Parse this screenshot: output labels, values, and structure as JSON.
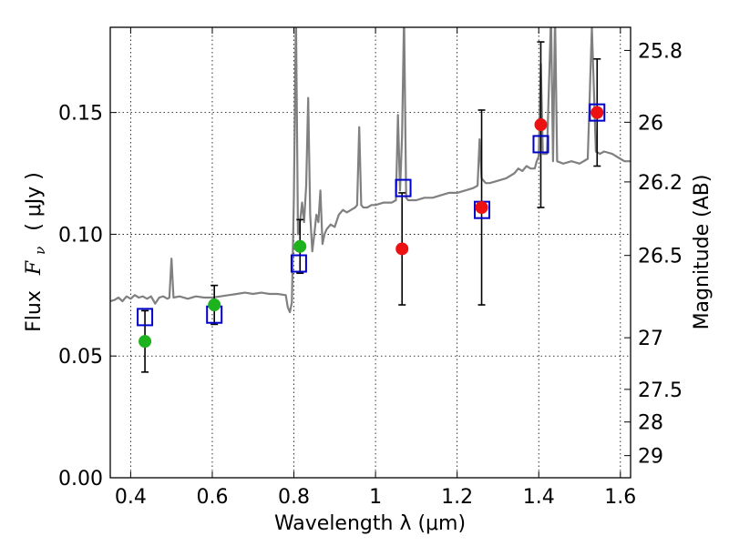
{
  "chart_data": {
    "type": "scatter",
    "title": "",
    "xlabel": "Wavelength  λ (μm)",
    "ylabel_prefix": "Flux",
    "ylabel_symbol": "F",
    "ylabel_subscript": "ν",
    "ylabel_units": "( μJy )",
    "y2label": "Magnitude (AB)",
    "xlim": [
      0.35,
      1.625
    ],
    "ylim": [
      0.0,
      0.185
    ],
    "grid": true,
    "xticks": [
      0.4,
      0.6,
      0.8,
      1.0,
      1.2,
      1.4,
      1.6
    ],
    "xtick_labels": [
      "0.4",
      "0.6",
      "0.8",
      "1",
      "1.2",
      "1.4",
      "1.6"
    ],
    "yticks": [
      0.0,
      0.05,
      0.1,
      0.15
    ],
    "ytick_labels": [
      "0.00",
      "0.05",
      "0.10",
      "0.15"
    ],
    "y2ticks": [
      {
        "label": "25.8",
        "flux": 0.1755
      },
      {
        "label": "26",
        "flux": 0.146
      },
      {
        "label": "26.2",
        "flux": 0.1215
      },
      {
        "label": "26.5",
        "flux": 0.0913
      },
      {
        "label": "27",
        "flux": 0.0575
      },
      {
        "label": "27.5",
        "flux": 0.0363
      },
      {
        "label": "28",
        "flux": 0.0229
      },
      {
        "label": "29",
        "flux": 0.0091
      }
    ],
    "colors": {
      "spectrum": "#808080",
      "model_box": "#0000cc",
      "green": "#1db31d",
      "red": "#ee1111",
      "errorbar": "#000000"
    },
    "spectrum": [
      [
        0.35,
        0.0725
      ],
      [
        0.36,
        0.073
      ],
      [
        0.37,
        0.074
      ],
      [
        0.38,
        0.0725
      ],
      [
        0.39,
        0.0745
      ],
      [
        0.4,
        0.0735
      ],
      [
        0.41,
        0.075
      ],
      [
        0.42,
        0.074
      ],
      [
        0.43,
        0.0745
      ],
      [
        0.44,
        0.0735
      ],
      [
        0.45,
        0.0745
      ],
      [
        0.46,
        0.0715
      ],
      [
        0.47,
        0.074
      ],
      [
        0.48,
        0.0745
      ],
      [
        0.49,
        0.0735
      ],
      [
        0.495,
        0.074
      ],
      [
        0.5,
        0.09
      ],
      [
        0.505,
        0.074
      ],
      [
        0.52,
        0.0745
      ],
      [
        0.54,
        0.0735
      ],
      [
        0.56,
        0.0745
      ],
      [
        0.58,
        0.074
      ],
      [
        0.6,
        0.074
      ],
      [
        0.62,
        0.0745
      ],
      [
        0.64,
        0.075
      ],
      [
        0.66,
        0.0755
      ],
      [
        0.68,
        0.076
      ],
      [
        0.7,
        0.0755
      ],
      [
        0.72,
        0.076
      ],
      [
        0.74,
        0.0755
      ],
      [
        0.76,
        0.0755
      ],
      [
        0.78,
        0.075
      ],
      [
        0.785,
        0.07
      ],
      [
        0.79,
        0.068
      ],
      [
        0.795,
        0.072
      ],
      [
        0.8,
        0.115
      ],
      [
        0.805,
        0.19
      ],
      [
        0.81,
        0.1
      ],
      [
        0.815,
        0.105
      ],
      [
        0.82,
        0.113
      ],
      [
        0.825,
        0.105
      ],
      [
        0.83,
        0.12
      ],
      [
        0.835,
        0.156
      ],
      [
        0.84,
        0.108
      ],
      [
        0.845,
        0.093
      ],
      [
        0.85,
        0.1
      ],
      [
        0.855,
        0.108
      ],
      [
        0.86,
        0.105
      ],
      [
        0.865,
        0.118
      ],
      [
        0.87,
        0.096
      ],
      [
        0.875,
        0.1
      ],
      [
        0.88,
        0.102
      ],
      [
        0.89,
        0.104
      ],
      [
        0.9,
        0.103
      ],
      [
        0.91,
        0.108
      ],
      [
        0.92,
        0.11
      ],
      [
        0.93,
        0.109
      ],
      [
        0.94,
        0.11
      ],
      [
        0.95,
        0.111
      ],
      [
        0.955,
        0.112
      ],
      [
        0.96,
        0.144
      ],
      [
        0.965,
        0.112
      ],
      [
        0.97,
        0.111
      ],
      [
        0.98,
        0.111
      ],
      [
        0.99,
        0.112
      ],
      [
        1.0,
        0.112
      ],
      [
        1.02,
        0.113
      ],
      [
        1.04,
        0.113
      ],
      [
        1.05,
        0.114
      ],
      [
        1.055,
        0.149
      ],
      [
        1.06,
        0.118
      ],
      [
        1.065,
        0.14
      ],
      [
        1.07,
        0.19
      ],
      [
        1.075,
        0.115
      ],
      [
        1.08,
        0.114
      ],
      [
        1.1,
        0.114
      ],
      [
        1.12,
        0.115
      ],
      [
        1.14,
        0.115
      ],
      [
        1.16,
        0.116
      ],
      [
        1.18,
        0.117
      ],
      [
        1.2,
        0.117
      ],
      [
        1.22,
        0.118
      ],
      [
        1.24,
        0.119
      ],
      [
        1.25,
        0.12
      ],
      [
        1.255,
        0.139
      ],
      [
        1.26,
        0.123
      ],
      [
        1.27,
        0.121
      ],
      [
        1.28,
        0.121
      ],
      [
        1.3,
        0.122
      ],
      [
        1.32,
        0.123
      ],
      [
        1.34,
        0.125
      ],
      [
        1.35,
        0.127
      ],
      [
        1.36,
        0.126
      ],
      [
        1.37,
        0.128
      ],
      [
        1.38,
        0.127
      ],
      [
        1.39,
        0.127
      ],
      [
        1.395,
        0.13
      ],
      [
        1.4,
        0.132
      ],
      [
        1.405,
        0.17
      ],
      [
        1.41,
        0.133
      ],
      [
        1.42,
        0.133
      ],
      [
        1.43,
        0.19
      ],
      [
        1.435,
        0.13
      ],
      [
        1.44,
        0.19
      ],
      [
        1.445,
        0.13
      ],
      [
        1.46,
        0.129
      ],
      [
        1.48,
        0.13
      ],
      [
        1.5,
        0.129
      ],
      [
        1.52,
        0.131
      ],
      [
        1.53,
        0.185
      ],
      [
        1.535,
        0.16
      ],
      [
        1.54,
        0.134
      ],
      [
        1.55,
        0.133
      ],
      [
        1.56,
        0.134
      ],
      [
        1.58,
        0.133
      ],
      [
        1.6,
        0.131
      ],
      [
        1.61,
        0.13
      ],
      [
        1.625,
        0.13
      ]
    ],
    "model_points": [
      {
        "x": 0.435,
        "y": 0.066
      },
      {
        "x": 0.605,
        "y": 0.067
      },
      {
        "x": 0.812,
        "y": 0.088
      },
      {
        "x": 1.068,
        "y": 0.119
      },
      {
        "x": 1.261,
        "y": 0.11
      },
      {
        "x": 1.405,
        "y": 0.137
      },
      {
        "x": 1.543,
        "y": 0.15
      }
    ],
    "observed_points": [
      {
        "x": 0.435,
        "y": 0.056,
        "yerr": 0.0126,
        "color": "green"
      },
      {
        "x": 0.605,
        "y": 0.071,
        "yerr": 0.008,
        "color": "green"
      },
      {
        "x": 0.815,
        "y": 0.095,
        "yerr": 0.011,
        "color": "green"
      },
      {
        "x": 1.065,
        "y": 0.094,
        "yerr": 0.023,
        "color": "red"
      },
      {
        "x": 1.26,
        "y": 0.111,
        "yerr": 0.04,
        "color": "red"
      },
      {
        "x": 1.405,
        "y": 0.145,
        "yerr": 0.034,
        "color": "red"
      },
      {
        "x": 1.543,
        "y": 0.15,
        "yerr": 0.022,
        "color": "red"
      }
    ]
  }
}
